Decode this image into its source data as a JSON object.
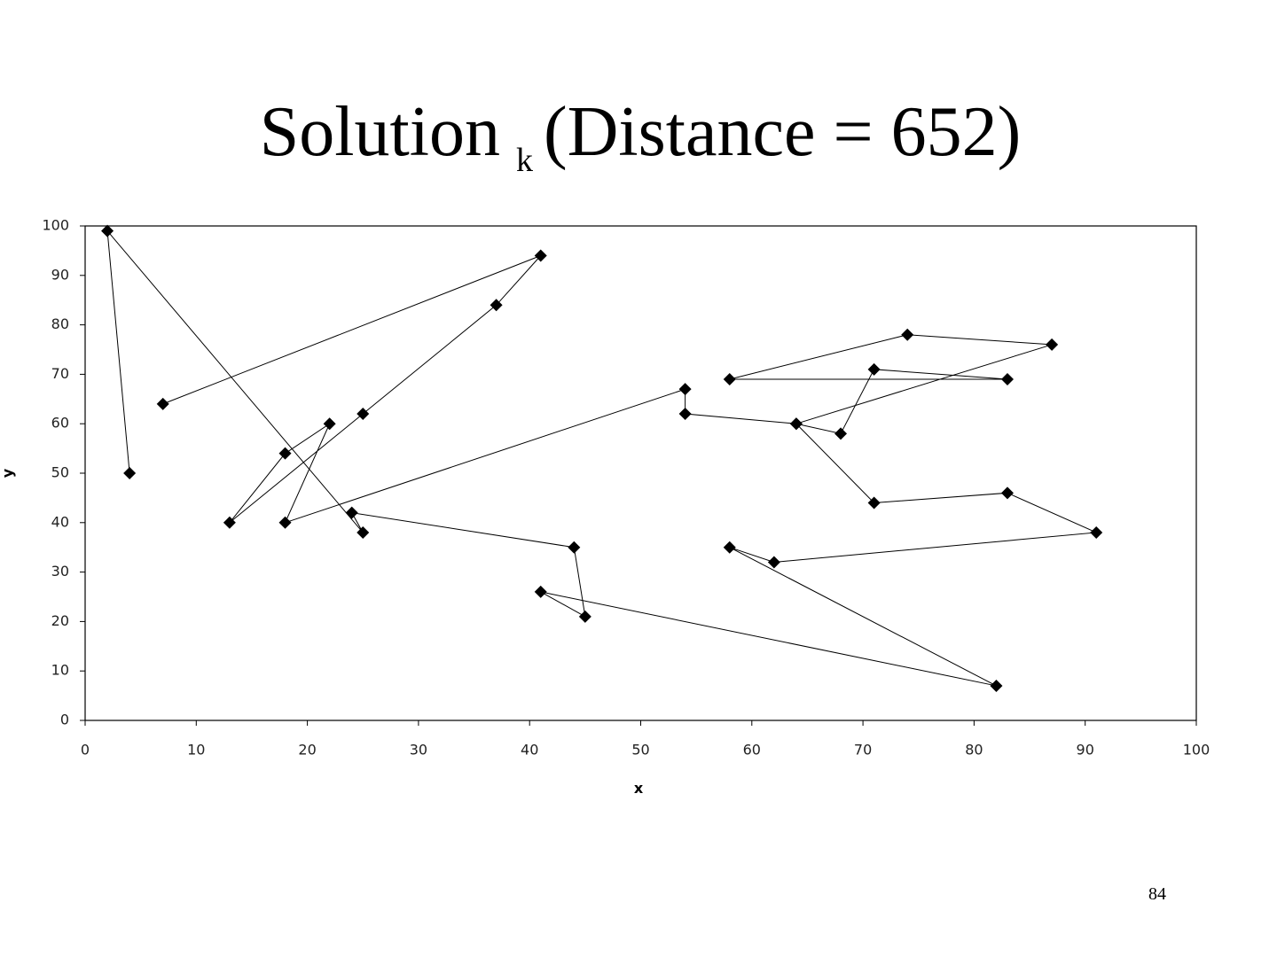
{
  "chart_data": {
    "type": "line",
    "title": {
      "main": "Solution",
      "subscript": "k",
      "rest": "(Distance = 652)"
    },
    "x_label": "x",
    "y_label": "y",
    "x": [
      4,
      2,
      25,
      24,
      44,
      45,
      41,
      82,
      58,
      62,
      91,
      83,
      71,
      64,
      87,
      74,
      58,
      83,
      71,
      68,
      64,
      54,
      54,
      18,
      22,
      18,
      13,
      25,
      37,
      41,
      7
    ],
    "values": [
      50,
      99,
      38,
      42,
      35,
      21,
      26,
      7,
      35,
      32,
      38,
      46,
      44,
      60,
      76,
      78,
      69,
      69,
      71,
      58,
      60,
      62,
      67,
      40,
      60,
      54,
      40,
      62,
      84,
      94,
      64
    ],
    "color": "#000000",
    "xlim": [
      0,
      100
    ],
    "xticks": [
      0,
      10,
      20,
      30,
      40,
      50,
      60,
      70,
      80,
      90,
      100
    ],
    "ylim": [
      0,
      100
    ],
    "yticks": [
      0,
      10,
      20,
      30,
      40,
      50,
      60,
      70,
      80,
      90,
      100
    ],
    "grid": false
  },
  "page_number": "84"
}
